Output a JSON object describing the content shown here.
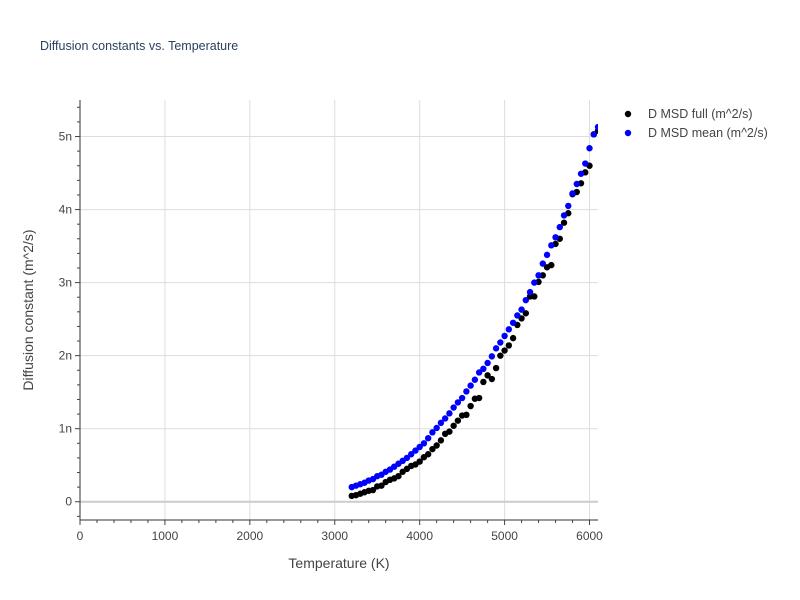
{
  "chart_data": {
    "type": "scatter",
    "title": "Diffusion constants vs. Temperature",
    "xlabel": "Temperature (K)",
    "ylabel": "Diffusion constant (m^2/s)",
    "xlim": [
      0,
      6100
    ],
    "ylim": [
      -0.25,
      5.5
    ],
    "x_ticks": [
      0,
      1000,
      2000,
      3000,
      4000,
      5000,
      6000
    ],
    "x_tick_labels": [
      "0",
      "1000",
      "2000",
      "3000",
      "4000",
      "5000",
      "6000"
    ],
    "y_ticks": [
      0,
      1,
      2,
      3,
      4,
      5
    ],
    "y_tick_labels": [
      "0",
      "1n",
      "2n",
      "3n",
      "4n",
      "5n"
    ],
    "grid": true,
    "legend_position": "top-right-outside",
    "series": [
      {
        "name": "D MSD full (m^2/s)",
        "color": "#000000",
        "x": [
          3200,
          3250,
          3300,
          3350,
          3400,
          3450,
          3500,
          3550,
          3600,
          3650,
          3700,
          3750,
          3800,
          3850,
          3900,
          3950,
          4000,
          4050,
          4100,
          4150,
          4200,
          4250,
          4300,
          4350,
          4400,
          4450,
          4500,
          4550,
          4600,
          4650,
          4700,
          4750,
          4800,
          4850,
          4900,
          4950,
          5000,
          5050,
          5100,
          5150,
          5200,
          5250,
          5300,
          5350,
          5400,
          5450,
          5500,
          5550,
          5600,
          5650,
          5700,
          5750,
          5800,
          5850,
          5900,
          5950,
          6000,
          6050,
          6100
        ],
        "values": [
          0.08,
          0.09,
          0.11,
          0.13,
          0.15,
          0.16,
          0.21,
          0.22,
          0.27,
          0.3,
          0.32,
          0.35,
          0.41,
          0.45,
          0.49,
          0.51,
          0.55,
          0.61,
          0.65,
          0.72,
          0.77,
          0.84,
          0.93,
          0.96,
          1.04,
          1.11,
          1.18,
          1.19,
          1.31,
          1.41,
          1.42,
          1.64,
          1.73,
          1.68,
          1.83,
          2.0,
          2.07,
          2.14,
          2.24,
          2.42,
          2.51,
          2.58,
          2.81,
          2.81,
          3.01,
          3.1,
          3.21,
          3.24,
          3.53,
          3.6,
          3.82,
          3.95,
          4.21,
          4.24,
          4.36,
          4.51,
          4.6,
          5.03,
          5.08
        ]
      },
      {
        "name": "D MSD mean (m^2/s)",
        "color": "#0000ff",
        "x": [
          3200,
          3250,
          3300,
          3350,
          3400,
          3450,
          3500,
          3550,
          3600,
          3650,
          3700,
          3750,
          3800,
          3850,
          3900,
          3950,
          4000,
          4050,
          4100,
          4150,
          4200,
          4250,
          4300,
          4350,
          4400,
          4450,
          4500,
          4550,
          4600,
          4650,
          4700,
          4750,
          4800,
          4850,
          4900,
          4950,
          5000,
          5050,
          5100,
          5150,
          5200,
          5250,
          5300,
          5350,
          5400,
          5450,
          5500,
          5550,
          5600,
          5650,
          5700,
          5750,
          5800,
          5850,
          5900,
          5950,
          6000,
          6050,
          6100
        ],
        "values": [
          0.2,
          0.22,
          0.24,
          0.26,
          0.29,
          0.31,
          0.35,
          0.37,
          0.41,
          0.44,
          0.48,
          0.52,
          0.56,
          0.6,
          0.65,
          0.7,
          0.75,
          0.8,
          0.87,
          0.95,
          1.01,
          1.08,
          1.14,
          1.21,
          1.29,
          1.36,
          1.42,
          1.51,
          1.59,
          1.67,
          1.77,
          1.82,
          1.9,
          1.99,
          2.1,
          2.18,
          2.27,
          2.36,
          2.45,
          2.55,
          2.63,
          2.76,
          2.87,
          3.0,
          3.1,
          3.26,
          3.38,
          3.51,
          3.62,
          3.76,
          3.92,
          4.05,
          4.22,
          4.35,
          4.49,
          4.63,
          4.84,
          5.03,
          5.13
        ]
      }
    ]
  }
}
